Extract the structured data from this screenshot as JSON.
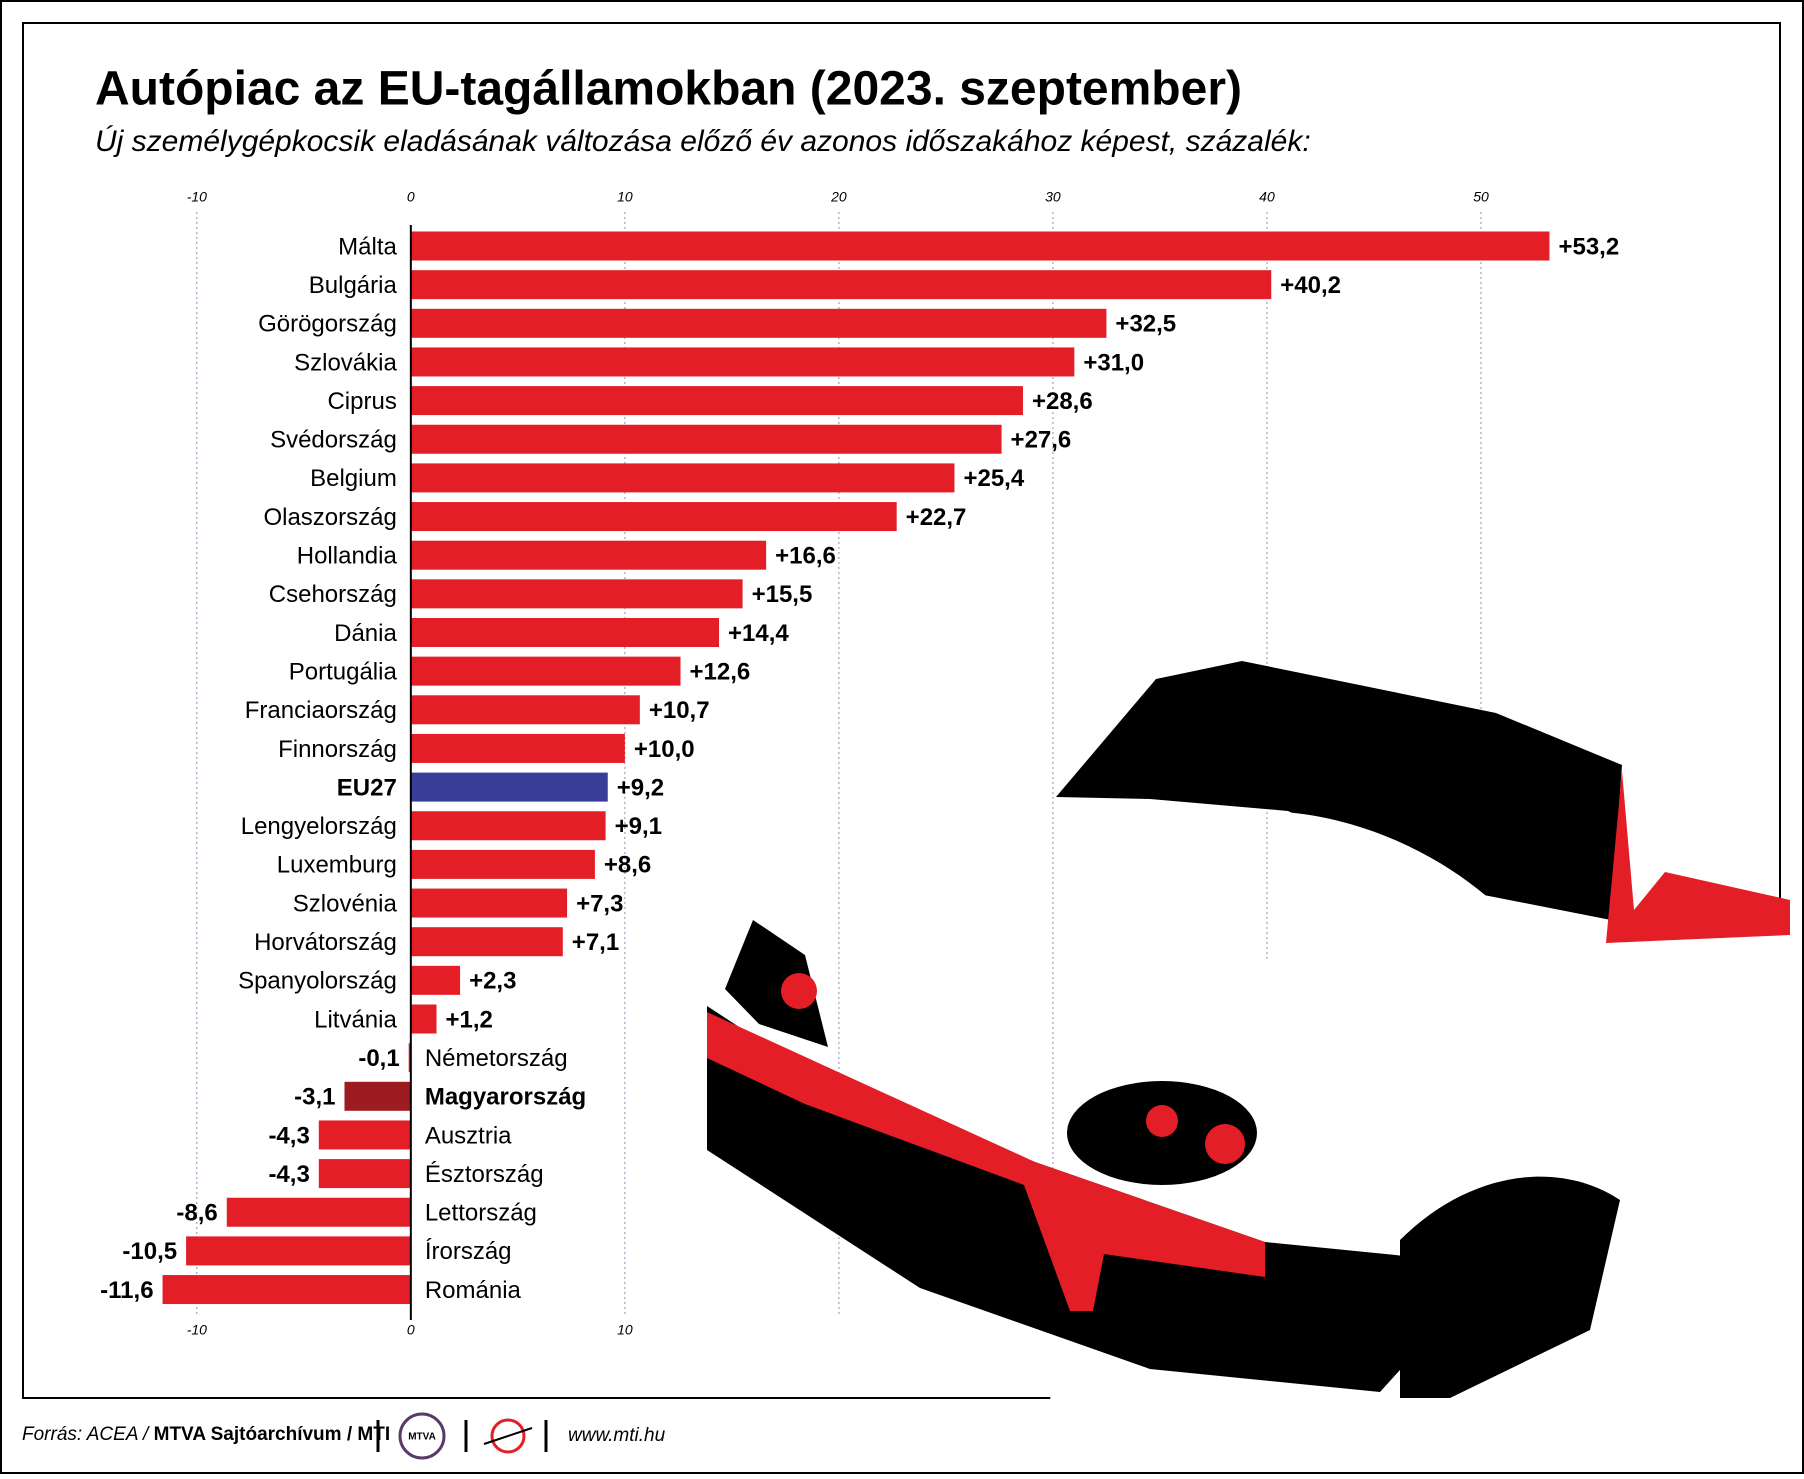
{
  "chart_data": {
    "type": "hbar",
    "title": "Autópiac az EU-tagállamokban (2023. szeptember)",
    "subtitle": "Új személygépkocsik eladásának változása előző év azonos időszakához képest, százalék:",
    "categories": [
      "Málta",
      "Bulgária",
      "Görögország",
      "Szlovákia",
      "Ciprus",
      "Svédország",
      "Belgium",
      "Olaszország",
      "Hollandia",
      "Csehország",
      "Dánia",
      "Portugália",
      "Franciaország",
      "Finnország",
      "EU27",
      "Lengyelország",
      "Luxemburg",
      "Szlovénia",
      "Horvátország",
      "Spanyolország",
      "Litvánia",
      "Németország",
      "Magyarország",
      "Ausztria",
      "Észtország",
      "Lettország",
      "Írország",
      "Románia"
    ],
    "values": [
      53.2,
      40.2,
      32.5,
      31.0,
      28.6,
      27.6,
      25.4,
      22.7,
      16.6,
      15.5,
      14.4,
      12.6,
      10.7,
      10.0,
      9.2,
      9.1,
      8.6,
      7.3,
      7.1,
      2.3,
      1.2,
      -0.1,
      -3.1,
      -4.3,
      -4.3,
      -8.6,
      -10.5,
      -11.6
    ],
    "value_labels": [
      "+53,2",
      "+40,2",
      "+32,5",
      "+31,0",
      "+28,6",
      "+27,6",
      "+25,4",
      "+22,7",
      "+16,6",
      "+15,5",
      "+14,4",
      "+12,6",
      "+10,7",
      "+10,0",
      "+9,2",
      "+9,1",
      "+8,6",
      "+7,3",
      "+7,1",
      "+2,3",
      "+1,2",
      "-0,1",
      "-3,1",
      "-4,3",
      "-4,3",
      "-8,6",
      "-10,5",
      "-11,6"
    ],
    "colors": [
      "#e31e26",
      "#e31e26",
      "#e31e26",
      "#e31e26",
      "#e31e26",
      "#e31e26",
      "#e31e26",
      "#e31e26",
      "#e31e26",
      "#e31e26",
      "#e31e26",
      "#e31e26",
      "#e31e26",
      "#e31e26",
      "#3a3d98",
      "#e31e26",
      "#e31e26",
      "#e31e26",
      "#e31e26",
      "#e31e26",
      "#e31e26",
      "#e31e26",
      "#9c1c22",
      "#e31e26",
      "#e31e26",
      "#e31e26",
      "#e31e26",
      "#e31e26"
    ],
    "bold": [
      false,
      false,
      false,
      false,
      false,
      false,
      false,
      false,
      false,
      false,
      false,
      false,
      false,
      false,
      true,
      false,
      false,
      false,
      false,
      false,
      false,
      false,
      true,
      false,
      false,
      false,
      false,
      false
    ],
    "xlim": [
      -12,
      55
    ],
    "xticks": [
      -10,
      0,
      10,
      20,
      30,
      40,
      50
    ],
    "bottom_xticks": [
      -10,
      0,
      10
    ],
    "grid": true
  },
  "footer": {
    "source_prefix": "Forrás: ACEA / ",
    "source_bold": "MTVA Sajtóarchívum / MTI",
    "logo": "MTVA",
    "url": "www.mti.hu"
  }
}
